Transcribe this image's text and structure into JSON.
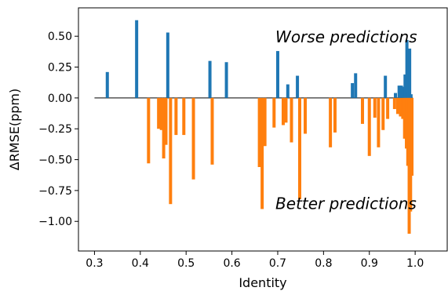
{
  "chart_data": {
    "type": "bar",
    "xlabel": "Identity",
    "ylabel": "ΔRMSE(ppm)",
    "xlim": [
      0.265,
      1.07
    ],
    "ylim": [
      -1.24,
      0.73
    ],
    "xticks": [
      0.3,
      0.4,
      0.5,
      0.6,
      0.7,
      0.8,
      0.9,
      1.0
    ],
    "xtick_labels": [
      "0.3",
      "0.4",
      "0.5",
      "0.6",
      "0.7",
      "0.8",
      "0.9",
      "1.0"
    ],
    "yticks": [
      0.5,
      0.25,
      0.0,
      -0.25,
      -0.5,
      -0.75,
      -1.0
    ],
    "ytick_labels": [
      "0.50",
      "0.25",
      "0.00",
      "−0.25",
      "−0.50",
      "−0.75",
      "−1.00"
    ],
    "grid": false,
    "baseline": {
      "y": 0,
      "x_from": 0.3,
      "x_to": 0.995
    },
    "annotations": [
      {
        "text": "Worse predictions",
        "x": 0.695,
        "y": 0.5
      },
      {
        "text": "Better predictions",
        "x": 0.695,
        "y": -0.85
      }
    ],
    "series": [
      {
        "color": "#1f77b4",
        "x": [
          0.328,
          0.392,
          0.46,
          0.552,
          0.588,
          0.7,
          0.722,
          0.743,
          0.863,
          0.87,
          0.935,
          0.957,
          0.965,
          0.97,
          0.975,
          0.978,
          0.982,
          0.985,
          0.988,
          0.991
        ],
        "values": [
          0.21,
          0.63,
          0.53,
          0.3,
          0.29,
          0.38,
          0.11,
          0.18,
          0.12,
          0.2,
          0.18,
          0.04,
          0.1,
          0.1,
          0.09,
          0.19,
          0.47,
          0.05,
          0.4,
          0.03
        ]
      },
      {
        "color": "#ff7f0e",
        "x": [
          0.418,
          0.44,
          0.446,
          0.451,
          0.456,
          0.466,
          0.478,
          0.495,
          0.516,
          0.557,
          0.66,
          0.666,
          0.672,
          0.692,
          0.712,
          0.718,
          0.73,
          0.748,
          0.76,
          0.815,
          0.825,
          0.885,
          0.9,
          0.912,
          0.92,
          0.93,
          0.94,
          0.955,
          0.962,
          0.968,
          0.973,
          0.977,
          0.981,
          0.984,
          0.987,
          0.99,
          0.993
        ],
        "values": [
          -0.53,
          -0.25,
          -0.26,
          -0.49,
          -0.38,
          -0.86,
          -0.3,
          -0.3,
          -0.66,
          -0.54,
          -0.56,
          -0.9,
          -0.39,
          -0.24,
          -0.22,
          -0.2,
          -0.36,
          -0.82,
          -0.29,
          -0.4,
          -0.28,
          -0.21,
          -0.47,
          -0.16,
          -0.4,
          -0.26,
          -0.17,
          -0.09,
          -0.13,
          -0.15,
          -0.17,
          -0.33,
          -0.41,
          -0.55,
          -1.1,
          -0.92,
          -0.63
        ]
      }
    ]
  }
}
